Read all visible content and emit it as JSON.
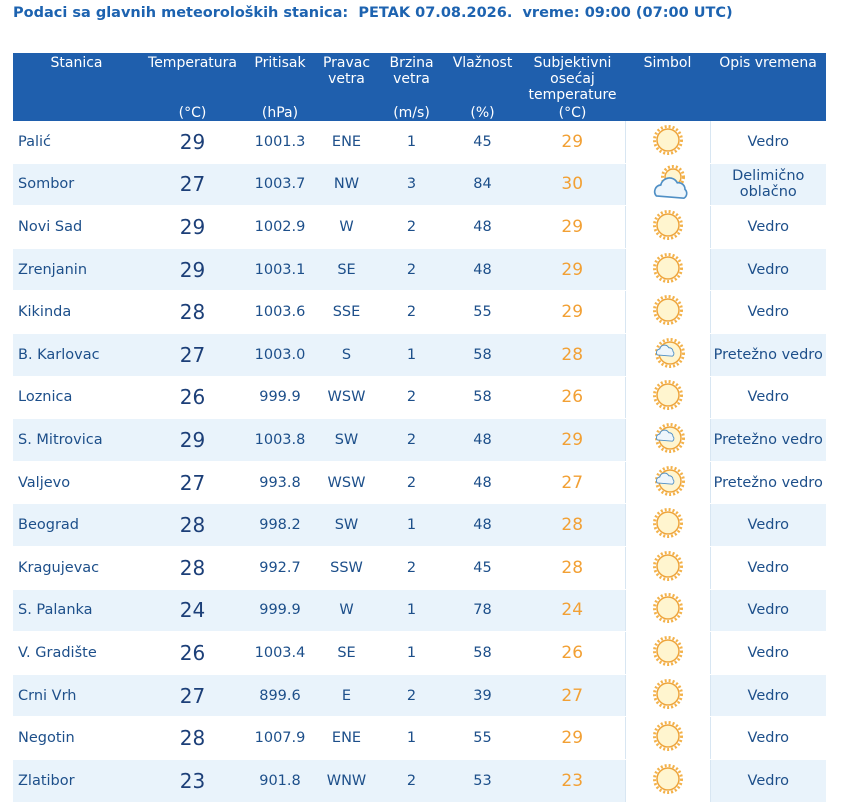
{
  "title": "Podaci sa glavnih meteoroloških stanica:  PETAK 07.08.2026.  vreme: 09:00 (07:00 UTC)",
  "table": {
    "columns": [
      {
        "name": "Stanica"
      },
      {
        "name": "Temperatura",
        "unit": "(°C)"
      },
      {
        "name": "Pritisak",
        "unit": "(hPa)"
      },
      {
        "name": "Pravac vetra"
      },
      {
        "name": "Brzina vetra",
        "unit": "(m/s)"
      },
      {
        "name": "Vlažnost",
        "unit": "(%)"
      },
      {
        "name": "Subjektivni osećaj temperature",
        "unit": "(°C)"
      },
      {
        "name": "Simbol"
      },
      {
        "name": "Opis vremena"
      }
    ],
    "rows": [
      {
        "station": "Palić",
        "temp": "29",
        "pressure": "1001.3",
        "direction": "ENE",
        "speed": "1",
        "humidity": "45",
        "feel": "29",
        "description": "Vedro"
      },
      {
        "station": "Sombor",
        "temp": "27",
        "pressure": "1003.7",
        "direction": "NW",
        "speed": "3",
        "humidity": "84",
        "feel": "30",
        "description": "Delimično oblačno"
      },
      {
        "station": "Novi Sad",
        "temp": "29",
        "pressure": "1002.9",
        "direction": "W",
        "speed": "2",
        "humidity": "48",
        "feel": "29",
        "description": "Vedro"
      },
      {
        "station": "Zrenjanin",
        "temp": "29",
        "pressure": "1003.1",
        "direction": "SE",
        "speed": "2",
        "humidity": "48",
        "feel": "29",
        "description": "Vedro"
      },
      {
        "station": "Kikinda",
        "temp": "28",
        "pressure": "1003.6",
        "direction": "SSE",
        "speed": "2",
        "humidity": "55",
        "feel": "29",
        "description": "Vedro"
      },
      {
        "station": "B. Karlovac",
        "temp": "27",
        "pressure": "1003.0",
        "direction": "S",
        "speed": "1",
        "humidity": "58",
        "feel": "28",
        "description": "Pretežno vedro"
      },
      {
        "station": "Loznica",
        "temp": "26",
        "pressure": "999.9",
        "direction": "WSW",
        "speed": "2",
        "humidity": "58",
        "feel": "26",
        "description": "Vedro"
      },
      {
        "station": "S. Mitrovica",
        "temp": "29",
        "pressure": "1003.8",
        "direction": "SW",
        "speed": "2",
        "humidity": "48",
        "feel": "29",
        "description": "Pretežno vedro"
      },
      {
        "station": "Valjevo",
        "temp": "27",
        "pressure": "993.8",
        "direction": "WSW",
        "speed": "2",
        "humidity": "48",
        "feel": "27",
        "description": "Pretežno vedro"
      },
      {
        "station": "Beograd",
        "temp": "28",
        "pressure": "998.2",
        "direction": "SW",
        "speed": "1",
        "humidity": "48",
        "feel": "28",
        "description": "Vedro"
      },
      {
        "station": "Kragujevac",
        "temp": "28",
        "pressure": "992.7",
        "direction": "SSW",
        "speed": "2",
        "humidity": "45",
        "feel": "28",
        "description": "Vedro"
      },
      {
        "station": "S. Palanka",
        "temp": "24",
        "pressure": "999.9",
        "direction": "W",
        "speed": "1",
        "humidity": "78",
        "feel": "24",
        "description": "Vedro"
      },
      {
        "station": "V. Gradište",
        "temp": "26",
        "pressure": "1003.4",
        "direction": "SE",
        "speed": "1",
        "humidity": "58",
        "feel": "26",
        "description": "Vedro"
      },
      {
        "station": "Crni Vrh",
        "temp": "27",
        "pressure": "899.6",
        "direction": "E",
        "speed": "2",
        "humidity": "39",
        "feel": "27",
        "description": "Vedro"
      },
      {
        "station": "Negotin",
        "temp": "28",
        "pressure": "1007.9",
        "direction": "ENE",
        "speed": "1",
        "humidity": "55",
        "feel": "29",
        "description": "Vedro"
      },
      {
        "station": "Zlatibor",
        "temp": "23",
        "pressure": "901.8",
        "direction": "WNW",
        "speed": "2",
        "humidity": "53",
        "feel": "23",
        "description": "Vedro"
      }
    ]
  }
}
